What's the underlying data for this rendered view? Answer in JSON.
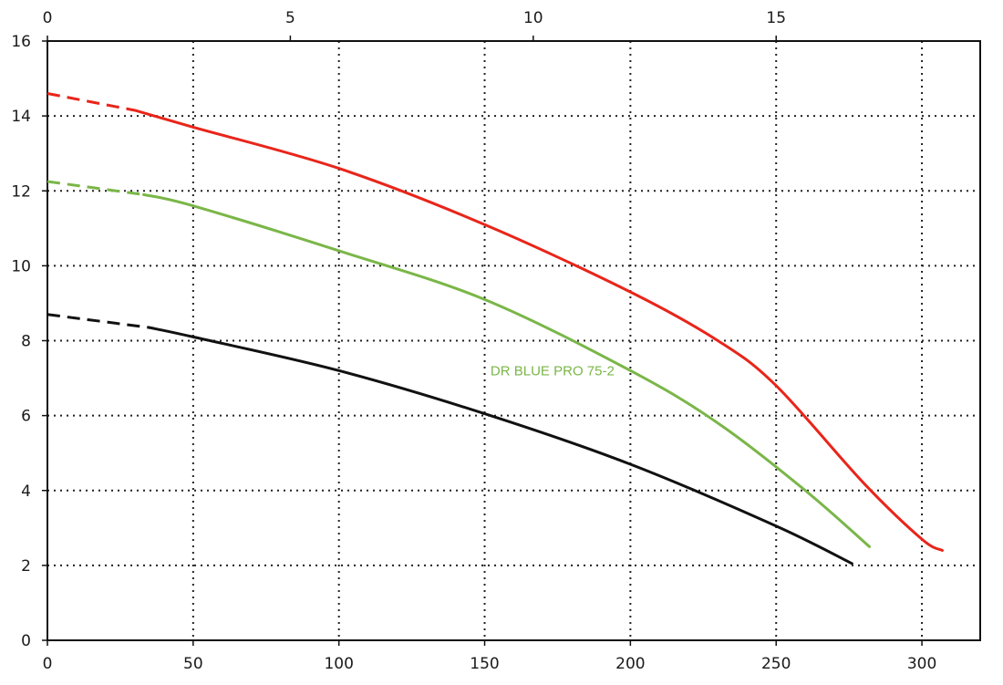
{
  "chart_data": {
    "type": "line",
    "title": "",
    "xlabel": "",
    "ylabel": "",
    "x_primary": {
      "range": [
        0,
        320
      ],
      "ticks": [
        0,
        50,
        100,
        150,
        200,
        250,
        300
      ]
    },
    "x_secondary": {
      "range": [
        0,
        19.2
      ],
      "ticks": [
        0,
        5,
        10,
        15
      ]
    },
    "y": {
      "range": [
        0,
        16
      ],
      "ticks": [
        0,
        2,
        4,
        6,
        8,
        10,
        12,
        14,
        16
      ]
    },
    "grid": true,
    "legend": "none",
    "series": [
      {
        "key": "red",
        "color": "#e8251a",
        "dashed_until_x": 30,
        "points": [
          [
            0,
            14.6
          ],
          [
            30,
            14.15
          ],
          [
            50,
            13.7
          ],
          [
            100,
            12.6
          ],
          [
            150,
            11.1
          ],
          [
            200,
            9.3
          ],
          [
            230,
            8.0
          ],
          [
            250,
            6.8
          ],
          [
            280,
            4.2
          ],
          [
            300,
            2.7
          ],
          [
            307,
            2.4
          ]
        ]
      },
      {
        "key": "green",
        "name": "DR BLUE PRO 75-2",
        "color": "#7ab648",
        "dashed_until_x": 33,
        "points": [
          [
            0,
            12.25
          ],
          [
            33,
            11.9
          ],
          [
            50,
            11.6
          ],
          [
            100,
            10.4
          ],
          [
            150,
            9.1
          ],
          [
            200,
            7.2
          ],
          [
            230,
            5.8
          ],
          [
            260,
            4.0
          ],
          [
            282,
            2.5
          ]
        ]
      },
      {
        "key": "black",
        "color": "#111111",
        "dashed_until_x": 35,
        "points": [
          [
            0,
            8.7
          ],
          [
            35,
            8.35
          ],
          [
            50,
            8.1
          ],
          [
            100,
            7.2
          ],
          [
            150,
            6.05
          ],
          [
            200,
            4.7
          ],
          [
            250,
            3.05
          ],
          [
            276,
            2.05
          ]
        ]
      }
    ],
    "annotations": [
      {
        "text": "DR BLUE PRO 75-2",
        "color": "#7ab648",
        "at": [
          152,
          7.2
        ]
      }
    ]
  }
}
